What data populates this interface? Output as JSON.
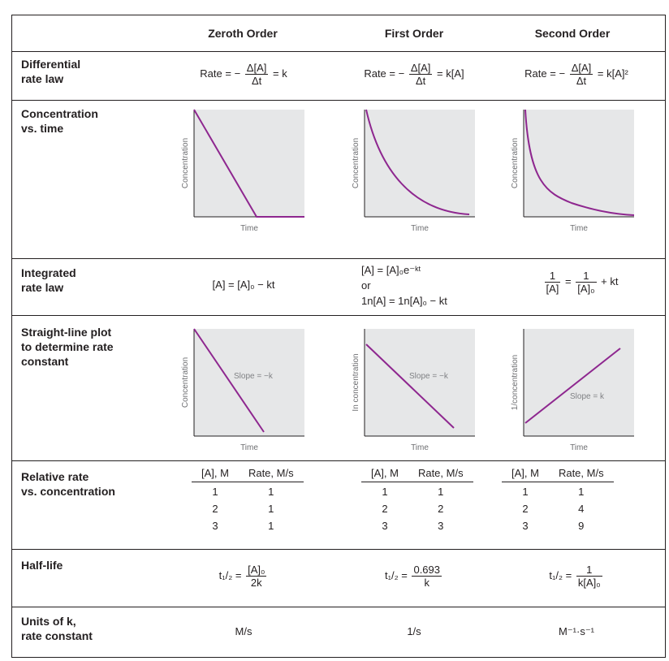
{
  "columns": {
    "zeroth": "Zeroth Order",
    "first": "First Order",
    "second": "Second Order"
  },
  "rows": {
    "diff": "Differential\nrate law",
    "conc": "Concentration\nvs. time",
    "integ": "Integrated\nrate law",
    "straight": "Straight-line plot\nto determine rate\nconstant",
    "relrate": "Relative rate\nvs. concentration",
    "halflife": "Half-life",
    "units": "Units of k,\nrate constant"
  },
  "diff_rate": {
    "rate_label": "Rate =",
    "minus": "−",
    "num": "Δ[A]",
    "den": "Δt",
    "zeroth_rhs": "= k",
    "first_rhs": "= k[A]",
    "second_rhs": "= k[A]²"
  },
  "integrated": {
    "zeroth": "[A] = [A]₀ − kt",
    "first_line1": "[A] = [A]₀e⁻ᵏᵗ",
    "first_or": "or",
    "first_line2": "1n[A] = 1n[A]₀ − kt",
    "second_lhs_num": "1",
    "second_lhs_den": "[A]",
    "second_eq": "=",
    "second_rhs_num": "1",
    "second_rhs_den": "[A]₀",
    "second_tail": "+ kt"
  },
  "plots": {
    "time_label": "Time",
    "conc_label": "Concentration",
    "ln_label": "In concentration",
    "inv_label": "1/concentration",
    "slope_neg": "Slope = −k",
    "slope_pos": "Slope = k",
    "curve_color": "#8e278f",
    "bg_color": "#e6e7e8"
  },
  "relative_rate": {
    "header_conc": "[A], M",
    "header_rate": "Rate, M/s",
    "zeroth": [
      [
        "1",
        "1"
      ],
      [
        "2",
        "1"
      ],
      [
        "3",
        "1"
      ]
    ],
    "first": [
      [
        "1",
        "1"
      ],
      [
        "2",
        "2"
      ],
      [
        "3",
        "3"
      ]
    ],
    "second": [
      [
        "1",
        "1"
      ],
      [
        "2",
        "4"
      ],
      [
        "3",
        "9"
      ]
    ]
  },
  "half_life": {
    "lhs": "t₁/₂ =",
    "zeroth_num": "[A]₀",
    "zeroth_den": "2k",
    "first_num": "0.693",
    "first_den": "k",
    "second_num": "1",
    "second_den": "k[A]₀"
  },
  "units": {
    "zeroth": "M/s",
    "first": "1/s",
    "second": "M⁻¹·s⁻¹"
  }
}
